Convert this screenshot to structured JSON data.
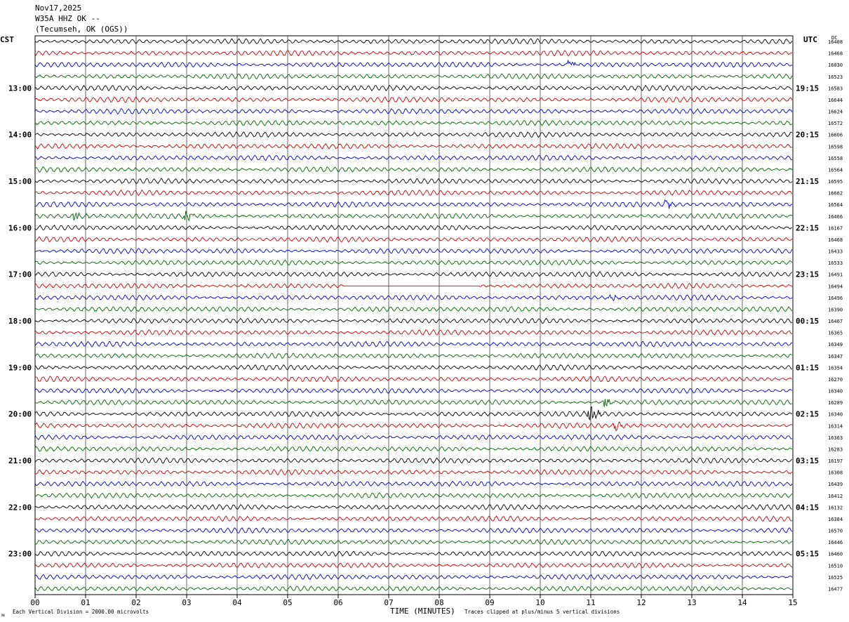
{
  "header": {
    "date": "Nov17,2025",
    "station": "W35A HHZ OK --",
    "location": "(Tecumseh, OK (OGS))"
  },
  "labels": {
    "left_zone": "CST",
    "right_zone": "UTC",
    "dc_header": "DC",
    "x_axis_title": "TIME (MINUTES)",
    "footer_left": "Each Vertical Division = 2000.00 microvolts",
    "footer_right": "Traces clipped at plus/minus 5 vertical divisions"
  },
  "colors": {
    "trace_cycle": [
      "#000000",
      "#cc0000",
      "#0000cc",
      "#006600"
    ],
    "grid": "#000000"
  },
  "chart_data": {
    "type": "line",
    "title": "",
    "xlabel": "TIME (MINUTES)",
    "ylabel": "",
    "xlim": [
      0,
      15
    ],
    "x_ticks": [
      "00",
      "01",
      "02",
      "03",
      "04",
      "05",
      "06",
      "07",
      "08",
      "09",
      "10",
      "11",
      "12",
      "13",
      "14",
      "15"
    ],
    "rows_per_hour": 4,
    "row_count": 48,
    "left_time_labels": [
      {
        "row": 4,
        "text": "13:00"
      },
      {
        "row": 8,
        "text": "14:00"
      },
      {
        "row": 12,
        "text": "15:00"
      },
      {
        "row": 16,
        "text": "16:00"
      },
      {
        "row": 20,
        "text": "17:00"
      },
      {
        "row": 24,
        "text": "18:00"
      },
      {
        "row": 28,
        "text": "19:00"
      },
      {
        "row": 32,
        "text": "20:00"
      },
      {
        "row": 36,
        "text": "21:00"
      },
      {
        "row": 40,
        "text": "22:00"
      },
      {
        "row": 44,
        "text": "23:00"
      }
    ],
    "right_time_labels": [
      {
        "row": 4,
        "text": "19:15"
      },
      {
        "row": 8,
        "text": "20:15"
      },
      {
        "row": 12,
        "text": "21:15"
      },
      {
        "row": 16,
        "text": "22:15"
      },
      {
        "row": 20,
        "text": "23:15"
      },
      {
        "row": 24,
        "text": "00:15"
      },
      {
        "row": 28,
        "text": "01:15"
      },
      {
        "row": 32,
        "text": "02:15"
      },
      {
        "row": 36,
        "text": "03:15"
      },
      {
        "row": 40,
        "text": "04:15"
      },
      {
        "row": 44,
        "text": "05:15"
      }
    ],
    "dc_offsets": [
      "16408",
      "16468",
      "16030",
      "16523",
      "16583",
      "16644",
      "16624",
      "16572",
      "16606",
      "16598",
      "16558",
      "16564",
      "16595",
      "16662",
      "16564",
      "16466",
      "16167",
      "16468",
      "16433",
      "16533",
      "16491",
      "16494",
      "16496",
      "16390",
      "16467",
      "16365",
      "16349",
      "16347",
      "16354",
      "16270",
      "16340",
      "16289",
      "16340",
      "16314",
      "16363",
      "16283",
      "16197",
      "16308",
      "16439",
      "16412",
      "16132",
      "16384",
      "16570",
      "16446",
      "16460",
      "16510",
      "16525",
      "16477"
    ],
    "events": [
      {
        "row": 2,
        "minute": 10.6,
        "amplitude": 1.4
      },
      {
        "row": 15,
        "minute": 0.8,
        "amplitude": 1.8
      },
      {
        "row": 15,
        "minute": 3.0,
        "amplitude": 2.2
      },
      {
        "row": 14,
        "minute": 12.5,
        "amplitude": 1.6
      },
      {
        "row": 21,
        "minute": 6.1,
        "amplitude": 0.0,
        "flat_until": 8.8
      },
      {
        "row": 22,
        "minute": 11.4,
        "amplitude": 1.3
      },
      {
        "row": 31,
        "minute": 11.3,
        "amplitude": 2.0
      },
      {
        "row": 32,
        "minute": 11.0,
        "amplitude": 3.0
      },
      {
        "row": 33,
        "minute": 11.5,
        "amplitude": 1.5
      }
    ]
  }
}
